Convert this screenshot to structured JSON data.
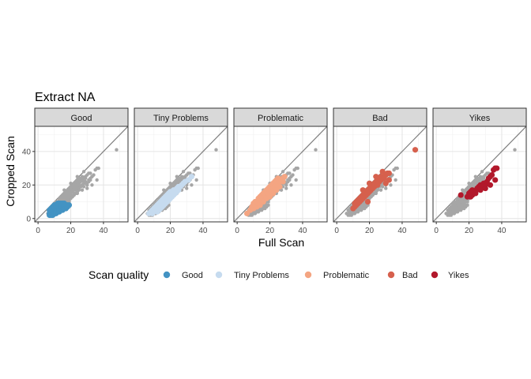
{
  "chart_data": {
    "type": "scatter",
    "title": "Extract NA",
    "xlabel": "Full Scan",
    "ylabel": "Cropped Scan",
    "xlim": [
      -2,
      55
    ],
    "ylim": [
      -2,
      55
    ],
    "x_ticks": [
      0,
      20,
      40
    ],
    "y_ticks": [
      0,
      20,
      40
    ],
    "tick_labels_x": [
      "0",
      "20",
      "40"
    ],
    "tick_labels_y": [
      "0",
      "20",
      "40"
    ],
    "grid": true,
    "reference_line": "y = x",
    "background_points_color": "#a6a6a6",
    "facets": [
      "Good",
      "Tiny Problems",
      "Problematic",
      "Bad",
      "Yikes"
    ],
    "legend": {
      "title": "Scan quality",
      "position": "bottom",
      "items": [
        {
          "label": "Good",
          "color": "#4393c3"
        },
        {
          "label": "Tiny Problems",
          "color": "#c6dbef"
        },
        {
          "label": "Problematic",
          "color": "#f4a582"
        },
        {
          "label": "Bad",
          "color": "#d6604d"
        },
        {
          "label": "Yikes",
          "color": "#b2182b"
        }
      ]
    },
    "series": [
      {
        "name": "Good",
        "color": "#4393c3",
        "points": [
          [
            7,
            2
          ],
          [
            7,
            3
          ],
          [
            8,
            2
          ],
          [
            8,
            3
          ],
          [
            8,
            4
          ],
          [
            9,
            2
          ],
          [
            9,
            3
          ],
          [
            9,
            4
          ],
          [
            9,
            5
          ],
          [
            10,
            3
          ],
          [
            10,
            4
          ],
          [
            10,
            5
          ],
          [
            10,
            6
          ],
          [
            11,
            3
          ],
          [
            11,
            4
          ],
          [
            11,
            5
          ],
          [
            11,
            6
          ],
          [
            12,
            4
          ],
          [
            12,
            5
          ],
          [
            12,
            6
          ],
          [
            12,
            7
          ],
          [
            13,
            4
          ],
          [
            13,
            5
          ],
          [
            13,
            6
          ],
          [
            13,
            7
          ],
          [
            14,
            5
          ],
          [
            14,
            6
          ],
          [
            14,
            7
          ],
          [
            15,
            5
          ],
          [
            15,
            6
          ],
          [
            15,
            7
          ],
          [
            16,
            6
          ],
          [
            16,
            7
          ],
          [
            16,
            8
          ],
          [
            17,
            6
          ],
          [
            17,
            7
          ],
          [
            17,
            8
          ],
          [
            18,
            7
          ],
          [
            18,
            8
          ],
          [
            19,
            8
          ],
          [
            8,
            6
          ],
          [
            9,
            7
          ],
          [
            10,
            8
          ],
          [
            11,
            8
          ],
          [
            12,
            9
          ],
          [
            13,
            9
          ],
          [
            14,
            9
          ],
          [
            15,
            9
          ],
          [
            7,
            5
          ],
          [
            16,
            9
          ]
        ]
      },
      {
        "name": "Tiny Problems",
        "color": "#c6dbef",
        "points": [
          [
            7,
            3
          ],
          [
            8,
            4
          ],
          [
            9,
            5
          ],
          [
            9,
            3
          ],
          [
            10,
            6
          ],
          [
            10,
            4
          ],
          [
            11,
            7
          ],
          [
            11,
            5
          ],
          [
            12,
            8
          ],
          [
            12,
            6
          ],
          [
            12,
            4
          ],
          [
            13,
            9
          ],
          [
            13,
            7
          ],
          [
            13,
            5
          ],
          [
            14,
            10
          ],
          [
            14,
            8
          ],
          [
            14,
            6
          ],
          [
            15,
            11
          ],
          [
            15,
            9
          ],
          [
            15,
            7
          ],
          [
            16,
            12
          ],
          [
            16,
            10
          ],
          [
            16,
            8
          ],
          [
            17,
            13
          ],
          [
            17,
            11
          ],
          [
            17,
            9
          ],
          [
            18,
            14
          ],
          [
            18,
            12
          ],
          [
            18,
            10
          ],
          [
            19,
            15
          ],
          [
            19,
            13
          ],
          [
            19,
            11
          ],
          [
            20,
            16
          ],
          [
            20,
            14
          ],
          [
            20,
            12
          ],
          [
            21,
            16
          ],
          [
            21,
            13
          ],
          [
            22,
            17
          ],
          [
            22,
            14
          ],
          [
            23,
            17
          ],
          [
            23,
            15
          ],
          [
            24,
            18
          ],
          [
            24,
            16
          ],
          [
            25,
            19
          ],
          [
            25,
            17
          ],
          [
            26,
            19
          ],
          [
            27,
            20
          ],
          [
            28,
            21
          ],
          [
            29,
            22
          ],
          [
            31,
            23
          ],
          [
            33,
            25
          ]
        ]
      },
      {
        "name": "Problematic",
        "color": "#f4a582",
        "points": [
          [
            6,
            3
          ],
          [
            8,
            5
          ],
          [
            9,
            7
          ],
          [
            10,
            6
          ],
          [
            10,
            9
          ],
          [
            11,
            8
          ],
          [
            11,
            10
          ],
          [
            12,
            7
          ],
          [
            12,
            10
          ],
          [
            13,
            9
          ],
          [
            13,
            12
          ],
          [
            14,
            10
          ],
          [
            14,
            13
          ],
          [
            15,
            11
          ],
          [
            15,
            14
          ],
          [
            16,
            12
          ],
          [
            16,
            15
          ],
          [
            17,
            13
          ],
          [
            17,
            16
          ],
          [
            18,
            14
          ],
          [
            18,
            17
          ],
          [
            19,
            15
          ],
          [
            19,
            18
          ],
          [
            20,
            16
          ],
          [
            20,
            19
          ],
          [
            21,
            17
          ],
          [
            21,
            20
          ],
          [
            22,
            18
          ],
          [
            22,
            21
          ],
          [
            23,
            19
          ],
          [
            23,
            22
          ],
          [
            24,
            20
          ],
          [
            24,
            23
          ],
          [
            25,
            21
          ],
          [
            25,
            24
          ],
          [
            26,
            22
          ],
          [
            27,
            23
          ],
          [
            28,
            24
          ],
          [
            29,
            25
          ],
          [
            14,
            8
          ],
          [
            16,
            10
          ],
          [
            18,
            12
          ],
          [
            20,
            13
          ],
          [
            22,
            15
          ],
          [
            24,
            17
          ],
          [
            26,
            19
          ],
          [
            28,
            22
          ]
        ]
      },
      {
        "name": "Bad",
        "color": "#d6604d",
        "points": [
          [
            10,
            6
          ],
          [
            11,
            7
          ],
          [
            11,
            9
          ],
          [
            12,
            8
          ],
          [
            12,
            10
          ],
          [
            13,
            9
          ],
          [
            13,
            11
          ],
          [
            14,
            10
          ],
          [
            14,
            12
          ],
          [
            15,
            11
          ],
          [
            15,
            13
          ],
          [
            16,
            12
          ],
          [
            16,
            14
          ],
          [
            17,
            13
          ],
          [
            17,
            15
          ],
          [
            18,
            14
          ],
          [
            18,
            16
          ],
          [
            19,
            15
          ],
          [
            19,
            17
          ],
          [
            20,
            16
          ],
          [
            20,
            18
          ],
          [
            21,
            17
          ],
          [
            21,
            19
          ],
          [
            22,
            18
          ],
          [
            22,
            20
          ],
          [
            23,
            19
          ],
          [
            23,
            21
          ],
          [
            24,
            20
          ],
          [
            24,
            22
          ],
          [
            25,
            21
          ],
          [
            25,
            23
          ],
          [
            26,
            22
          ],
          [
            26,
            24
          ],
          [
            27,
            23
          ],
          [
            27,
            25
          ],
          [
            28,
            24
          ],
          [
            29,
            25
          ],
          [
            30,
            26
          ],
          [
            31,
            27
          ],
          [
            16,
            17
          ],
          [
            20,
            21
          ],
          [
            24,
            25
          ],
          [
            28,
            28
          ],
          [
            32,
            27
          ],
          [
            29,
            24
          ],
          [
            48,
            41
          ],
          [
            30,
            21
          ],
          [
            25,
            20
          ],
          [
            32,
            23
          ],
          [
            19,
            10
          ]
        ]
      },
      {
        "name": "Yikes",
        "color": "#b2182b",
        "points": [
          [
            15,
            14
          ],
          [
            19,
            13
          ],
          [
            20,
            15
          ],
          [
            21,
            16
          ],
          [
            22,
            17
          ],
          [
            22,
            14
          ],
          [
            24,
            16
          ],
          [
            25,
            18
          ],
          [
            26,
            19
          ],
          [
            27,
            20
          ],
          [
            28,
            19
          ],
          [
            29,
            21
          ],
          [
            30,
            20
          ],
          [
            31,
            22
          ],
          [
            32,
            24
          ],
          [
            33,
            25
          ],
          [
            34,
            26
          ],
          [
            35,
            29
          ],
          [
            36,
            30
          ],
          [
            37,
            30
          ],
          [
            36,
            23
          ],
          [
            33,
            20
          ],
          [
            30,
            18
          ],
          [
            27,
            17
          ],
          [
            24,
            15
          ],
          [
            21,
            13
          ]
        ]
      }
    ]
  }
}
